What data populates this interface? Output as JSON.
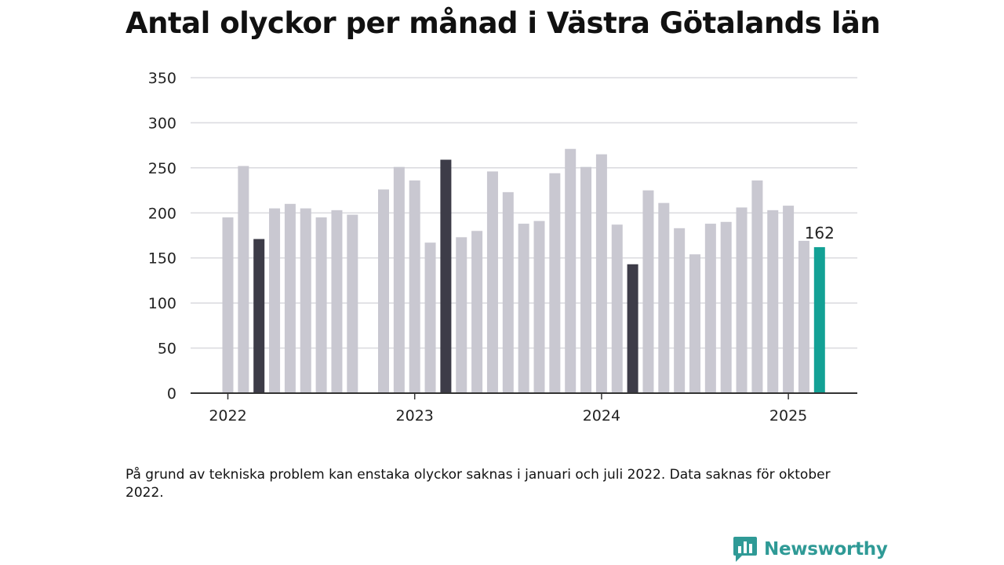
{
  "title": "Antal olyckor per månad i Västra Götalands län",
  "chart_data": {
    "type": "bar",
    "title": "Antal olyckor per månad i Västra Götalands län",
    "xlabel": "",
    "ylabel": "",
    "ylim": [
      0,
      350
    ],
    "yticks": [
      0,
      50,
      100,
      150,
      200,
      250,
      300,
      350
    ],
    "x_tick_labels": [
      "2022",
      "2023",
      "2024",
      "2025"
    ],
    "grid": true,
    "colors": {
      "default": "#c9c8d1",
      "highlight": "#3d3c48",
      "latest": "#13a195",
      "grid": "#dcdce0",
      "axis": "#333333"
    },
    "months": [
      "2022-01",
      "2022-02",
      "2022-03",
      "2022-04",
      "2022-05",
      "2022-06",
      "2022-07",
      "2022-08",
      "2022-09",
      "2022-10",
      "2022-11",
      "2022-12",
      "2023-01",
      "2023-02",
      "2023-03",
      "2023-04",
      "2023-05",
      "2023-06",
      "2023-07",
      "2023-08",
      "2023-09",
      "2023-10",
      "2023-11",
      "2023-12",
      "2024-01",
      "2024-02",
      "2024-03",
      "2024-04",
      "2024-05",
      "2024-06",
      "2024-07",
      "2024-08",
      "2024-09",
      "2024-10",
      "2024-11",
      "2024-12",
      "2025-01",
      "2025-02",
      "2025-03"
    ],
    "values": [
      195,
      252,
      171,
      205,
      210,
      205,
      195,
      203,
      198,
      null,
      226,
      251,
      236,
      167,
      259,
      173,
      180,
      246,
      223,
      188,
      191,
      244,
      271,
      251,
      265,
      187,
      143,
      225,
      211,
      183,
      154,
      188,
      190,
      206,
      236,
      203,
      208,
      169,
      162
    ],
    "highlighted": [
      "2022-03",
      "2023-03",
      "2024-03"
    ],
    "latest": "2025-03",
    "latest_label": "162"
  },
  "footnote": "På grund av tekniska problem kan enstaka olyckor saknas i januari och juli 2022. Data saknas för oktober 2022.",
  "brand": {
    "name": "Newsworthy",
    "icon": "bar-chart-speech-icon",
    "color": "#2f9a96"
  }
}
